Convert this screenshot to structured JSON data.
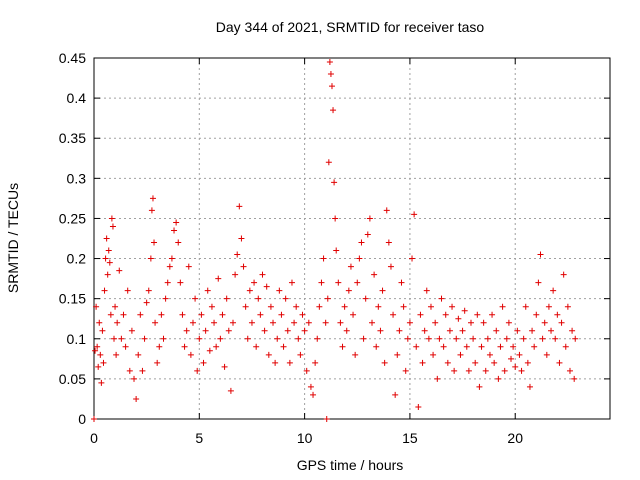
{
  "chart_data": {
    "type": "scatter",
    "title": "Day 344 of 2021, SRMTID for receiver taso",
    "xlabel": "GPS time / hours",
    "ylabel": "SRMTID / TECUs",
    "xlim": [
      0,
      24.5
    ],
    "ylim": [
      0,
      0.45
    ],
    "xticks": [
      0,
      5,
      10,
      15,
      20
    ],
    "xtick_labels": [
      "0",
      "5",
      "10",
      "15",
      "20"
    ],
    "yticks": [
      0,
      0.05,
      0.1,
      0.15,
      0.2,
      0.25,
      0.3,
      0.35,
      0.4,
      0.45
    ],
    "ytick_labels": [
      "0",
      "0.05",
      "0.1",
      "0.15",
      "0.2",
      "0.25",
      "0.3",
      "0.35",
      "0.4",
      "0.45"
    ],
    "grid": true,
    "marker": "+",
    "color": "#e00000",
    "series": [
      {
        "name": "SRMTID",
        "points": [
          [
            0.0,
            0.0
          ],
          [
            0.05,
            0.085
          ],
          [
            0.1,
            0.14
          ],
          [
            0.15,
            0.09
          ],
          [
            0.2,
            0.065
          ],
          [
            0.25,
            0.12
          ],
          [
            0.3,
            0.08
          ],
          [
            0.35,
            0.045
          ],
          [
            0.4,
            0.11
          ],
          [
            0.45,
            0.07
          ],
          [
            0.5,
            0.16
          ],
          [
            0.55,
            0.2
          ],
          [
            0.6,
            0.225
          ],
          [
            0.65,
            0.18
          ],
          [
            0.7,
            0.21
          ],
          [
            0.75,
            0.195
          ],
          [
            0.8,
            0.13
          ],
          [
            0.85,
            0.25
          ],
          [
            0.9,
            0.24
          ],
          [
            0.95,
            0.1
          ],
          [
            1.0,
            0.14
          ],
          [
            1.05,
            0.08
          ],
          [
            1.1,
            0.12
          ],
          [
            1.2,
            0.185
          ],
          [
            1.3,
            0.1
          ],
          [
            1.4,
            0.13
          ],
          [
            1.5,
            0.09
          ],
          [
            1.6,
            0.16
          ],
          [
            1.7,
            0.06
          ],
          [
            1.8,
            0.11
          ],
          [
            1.9,
            0.05
          ],
          [
            2.0,
            0.025
          ],
          [
            2.1,
            0.08
          ],
          [
            2.2,
            0.13
          ],
          [
            2.3,
            0.06
          ],
          [
            2.4,
            0.1
          ],
          [
            2.5,
            0.145
          ],
          [
            2.6,
            0.16
          ],
          [
            2.7,
            0.2
          ],
          [
            2.75,
            0.26
          ],
          [
            2.8,
            0.275
          ],
          [
            2.85,
            0.22
          ],
          [
            2.9,
            0.12
          ],
          [
            3.0,
            0.07
          ],
          [
            3.1,
            0.09
          ],
          [
            3.2,
            0.13
          ],
          [
            3.3,
            0.1
          ],
          [
            3.4,
            0.15
          ],
          [
            3.5,
            0.17
          ],
          [
            3.6,
            0.19
          ],
          [
            3.7,
            0.2
          ],
          [
            3.8,
            0.235
          ],
          [
            3.9,
            0.245
          ],
          [
            4.0,
            0.22
          ],
          [
            4.1,
            0.17
          ],
          [
            4.2,
            0.13
          ],
          [
            4.3,
            0.09
          ],
          [
            4.4,
            0.11
          ],
          [
            4.5,
            0.19
          ],
          [
            4.6,
            0.08
          ],
          [
            4.7,
            0.12
          ],
          [
            4.8,
            0.15
          ],
          [
            4.9,
            0.06
          ],
          [
            5.0,
            0.1
          ],
          [
            5.1,
            0.13
          ],
          [
            5.2,
            0.07
          ],
          [
            5.3,
            0.11
          ],
          [
            5.4,
            0.16
          ],
          [
            5.5,
            0.085
          ],
          [
            5.6,
            0.14
          ],
          [
            5.7,
            0.12
          ],
          [
            5.8,
            0.09
          ],
          [
            5.9,
            0.175
          ],
          [
            6.0,
            0.1
          ],
          [
            6.1,
            0.13
          ],
          [
            6.2,
            0.065
          ],
          [
            6.3,
            0.15
          ],
          [
            6.4,
            0.11
          ],
          [
            6.5,
            0.035
          ],
          [
            6.6,
            0.12
          ],
          [
            6.7,
            0.18
          ],
          [
            6.8,
            0.205
          ],
          [
            6.9,
            0.265
          ],
          [
            7.0,
            0.225
          ],
          [
            7.1,
            0.19
          ],
          [
            7.2,
            0.14
          ],
          [
            7.3,
            0.1
          ],
          [
            7.4,
            0.16
          ],
          [
            7.5,
            0.12
          ],
          [
            7.6,
            0.17
          ],
          [
            7.7,
            0.09
          ],
          [
            7.8,
            0.15
          ],
          [
            7.9,
            0.13
          ],
          [
            8.0,
            0.18
          ],
          [
            8.1,
            0.11
          ],
          [
            8.2,
            0.165
          ],
          [
            8.3,
            0.08
          ],
          [
            8.4,
            0.14
          ],
          [
            8.5,
            0.12
          ],
          [
            8.6,
            0.07
          ],
          [
            8.7,
            0.1
          ],
          [
            8.8,
            0.16
          ],
          [
            8.9,
            0.13
          ],
          [
            9.0,
            0.09
          ],
          [
            9.1,
            0.15
          ],
          [
            9.2,
            0.11
          ],
          [
            9.3,
            0.07
          ],
          [
            9.4,
            0.17
          ],
          [
            9.5,
            0.12
          ],
          [
            9.6,
            0.14
          ],
          [
            9.7,
            0.1
          ],
          [
            9.8,
            0.08
          ],
          [
            9.9,
            0.13
          ],
          [
            10.0,
            0.11
          ],
          [
            10.1,
            0.06
          ],
          [
            10.2,
            0.12
          ],
          [
            10.3,
            0.04
          ],
          [
            10.4,
            0.03
          ],
          [
            10.5,
            0.07
          ],
          [
            10.6,
            0.1
          ],
          [
            10.7,
            0.14
          ],
          [
            10.8,
            0.17
          ],
          [
            10.9,
            0.2
          ],
          [
            11.0,
            0.12
          ],
          [
            11.05,
            0.0
          ],
          [
            11.1,
            0.15
          ],
          [
            11.15,
            0.32
          ],
          [
            11.2,
            0.445
          ],
          [
            11.25,
            0.43
          ],
          [
            11.3,
            0.415
          ],
          [
            11.35,
            0.385
          ],
          [
            11.4,
            0.295
          ],
          [
            11.45,
            0.25
          ],
          [
            11.5,
            0.21
          ],
          [
            11.6,
            0.17
          ],
          [
            11.7,
            0.12
          ],
          [
            11.8,
            0.09
          ],
          [
            11.9,
            0.14
          ],
          [
            12.0,
            0.11
          ],
          [
            12.1,
            0.16
          ],
          [
            12.2,
            0.19
          ],
          [
            12.3,
            0.13
          ],
          [
            12.4,
            0.08
          ],
          [
            12.5,
            0.17
          ],
          [
            12.6,
            0.2
          ],
          [
            12.7,
            0.22
          ],
          [
            12.8,
            0.1
          ],
          [
            12.9,
            0.15
          ],
          [
            13.0,
            0.23
          ],
          [
            13.1,
            0.25
          ],
          [
            13.2,
            0.12
          ],
          [
            13.3,
            0.18
          ],
          [
            13.4,
            0.09
          ],
          [
            13.5,
            0.14
          ],
          [
            13.6,
            0.11
          ],
          [
            13.7,
            0.16
          ],
          [
            13.8,
            0.07
          ],
          [
            13.9,
            0.26
          ],
          [
            14.0,
            0.22
          ],
          [
            14.1,
            0.19
          ],
          [
            14.2,
            0.13
          ],
          [
            14.3,
            0.03
          ],
          [
            14.4,
            0.08
          ],
          [
            14.5,
            0.11
          ],
          [
            14.6,
            0.17
          ],
          [
            14.7,
            0.14
          ],
          [
            14.8,
            0.06
          ],
          [
            14.9,
            0.1
          ],
          [
            15.0,
            0.12
          ],
          [
            15.1,
            0.2
          ],
          [
            15.2,
            0.255
          ],
          [
            15.3,
            0.09
          ],
          [
            15.4,
            0.015
          ],
          [
            15.5,
            0.13
          ],
          [
            15.6,
            0.07
          ],
          [
            15.7,
            0.11
          ],
          [
            15.8,
            0.16
          ],
          [
            15.9,
            0.1
          ],
          [
            16.0,
            0.14
          ],
          [
            16.1,
            0.08
          ],
          [
            16.2,
            0.12
          ],
          [
            16.3,
            0.05
          ],
          [
            16.4,
            0.1
          ],
          [
            16.5,
            0.15
          ],
          [
            16.6,
            0.09
          ],
          [
            16.7,
            0.13
          ],
          [
            16.8,
            0.07
          ],
          [
            16.9,
            0.11
          ],
          [
            17.0,
            0.14
          ],
          [
            17.1,
            0.06
          ],
          [
            17.2,
            0.1
          ],
          [
            17.3,
            0.125
          ],
          [
            17.4,
            0.08
          ],
          [
            17.5,
            0.11
          ],
          [
            17.6,
            0.135
          ],
          [
            17.7,
            0.09
          ],
          [
            17.8,
            0.06
          ],
          [
            17.9,
            0.12
          ],
          [
            18.0,
            0.1
          ],
          [
            18.1,
            0.07
          ],
          [
            18.2,
            0.13
          ],
          [
            18.3,
            0.04
          ],
          [
            18.4,
            0.09
          ],
          [
            18.5,
            0.12
          ],
          [
            18.6,
            0.06
          ],
          [
            18.7,
            0.1
          ],
          [
            18.8,
            0.08
          ],
          [
            18.9,
            0.13
          ],
          [
            19.0,
            0.07
          ],
          [
            19.1,
            0.11
          ],
          [
            19.2,
            0.05
          ],
          [
            19.3,
            0.09
          ],
          [
            19.4,
            0.14
          ],
          [
            19.5,
            0.06
          ],
          [
            19.6,
            0.1
          ],
          [
            19.7,
            0.12
          ],
          [
            19.8,
            0.075
          ],
          [
            19.9,
            0.09
          ],
          [
            20.0,
            0.065
          ],
          [
            20.1,
            0.11
          ],
          [
            20.2,
            0.08
          ],
          [
            20.3,
            0.06
          ],
          [
            20.4,
            0.1
          ],
          [
            20.5,
            0.14
          ],
          [
            20.6,
            0.07
          ],
          [
            20.7,
            0.04
          ],
          [
            20.8,
            0.11
          ],
          [
            20.9,
            0.09
          ],
          [
            21.0,
            0.13
          ],
          [
            21.1,
            0.17
          ],
          [
            21.2,
            0.205
          ],
          [
            21.3,
            0.1
          ],
          [
            21.4,
            0.12
          ],
          [
            21.5,
            0.08
          ],
          [
            21.6,
            0.14
          ],
          [
            21.7,
            0.11
          ],
          [
            21.8,
            0.16
          ],
          [
            21.9,
            0.1
          ],
          [
            22.0,
            0.13
          ],
          [
            22.1,
            0.07
          ],
          [
            22.2,
            0.12
          ],
          [
            22.3,
            0.18
          ],
          [
            22.4,
            0.09
          ],
          [
            22.5,
            0.14
          ],
          [
            22.6,
            0.06
          ],
          [
            22.7,
            0.11
          ],
          [
            22.8,
            0.05
          ],
          [
            22.85,
            0.1
          ]
        ]
      }
    ]
  }
}
